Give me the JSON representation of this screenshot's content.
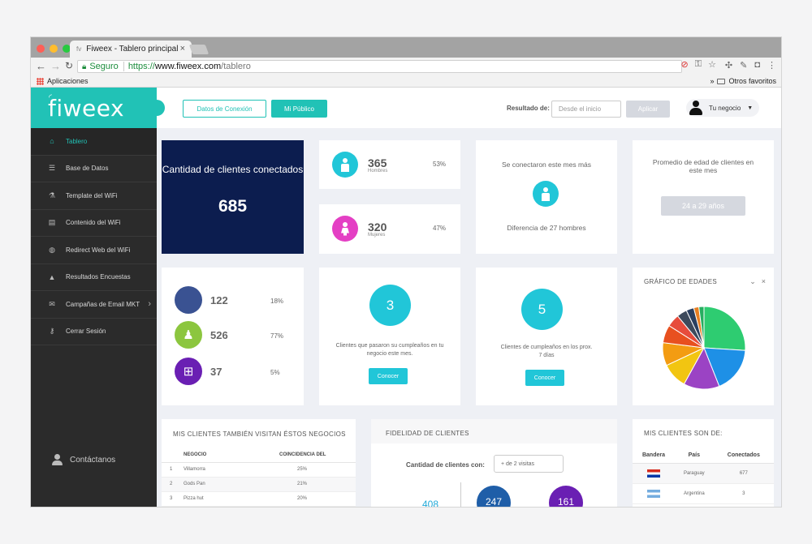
{
  "browser": {
    "tab_title": "Fiweex - Tablero principal",
    "tab_favicon": "fv",
    "secure_label": "Seguro",
    "url_scheme": "https://",
    "url_host": "www.fiweex.com",
    "url_path": "/tablero",
    "bookmarks_apps": "Aplicaciones",
    "bookmarks_other": "Otros favoritos",
    "bookmarks_more": "»"
  },
  "sidebar": {
    "logo": "fiweex",
    "items": [
      {
        "label": "Tablero",
        "icon": "dashboard-icon",
        "glyph": "⌂"
      },
      {
        "label": "Base de Datos",
        "icon": "users-icon",
        "glyph": "☰"
      },
      {
        "label": "Template del WiFi",
        "icon": "flask-icon",
        "glyph": "⚗"
      },
      {
        "label": "Contenido del WiFi",
        "icon": "archive-icon",
        "glyph": "▤"
      },
      {
        "label": "Redirect Web del WiFi",
        "icon": "globe-icon",
        "glyph": "◍"
      },
      {
        "label": "Resultados Encuestas",
        "icon": "area-chart-icon",
        "glyph": "▲"
      },
      {
        "label": "Campañas de Email MKT",
        "icon": "envelope-icon",
        "glyph": "✉"
      },
      {
        "label": "Cerrar Sesión",
        "icon": "key-icon",
        "glyph": "⚷"
      }
    ],
    "contact_label": "Contáctanos"
  },
  "topbar": {
    "btn_connection": "Datos de Conexión",
    "btn_audience": "Mi Público",
    "result_label": "Resultado de:",
    "date_placeholder": "Desde el inicio",
    "apply_label": "Aplicar",
    "user_label": "Tu negocio"
  },
  "connected": {
    "title": "Cantidad de clientes conectados",
    "value": "685"
  },
  "men": {
    "value": "365",
    "label": "Hombres",
    "pct": "53%"
  },
  "women": {
    "value": "320",
    "label": "Mujeres",
    "pct": "47%"
  },
  "more_this_month": {
    "title": "Se conectaron este mes más",
    "diff": "Diferencia de 27 hombres"
  },
  "age_avg": {
    "title": "Promedio de edad de clientes en este mes",
    "value": "24 a 29 años"
  },
  "os": [
    {
      "name": "apple-icon",
      "value": "122",
      "pct": "18%",
      "color": "#3a5292",
      "glyph": ""
    },
    {
      "name": "android-icon",
      "value": "526",
      "pct": "77%",
      "color": "#8cc63f",
      "glyph": "♟"
    },
    {
      "name": "windows-icon",
      "value": "37",
      "pct": "5%",
      "color": "#6a1fb3",
      "glyph": "⊞"
    }
  ],
  "birthday_past": {
    "value": "3",
    "text": "Clientes que pasaron su cumpleaños en tu negocio este mes.",
    "button": "Conocer"
  },
  "birthday_next": {
    "value": "5",
    "text": "Clientes de cumpleaños en los prox. 7 días",
    "button": "Conocer"
  },
  "age_chart": {
    "title": "GRÁFICO DE EDADES"
  },
  "chart_data": {
    "type": "pie",
    "title": "GRÁFICO DE EDADES",
    "values": [
      26,
      18,
      14,
      10,
      9,
      7,
      5,
      4,
      3,
      2,
      2
    ],
    "colors": [
      "#2ecc71",
      "#1e90e6",
      "#9b43c4",
      "#f2c511",
      "#f39c12",
      "#e8501f",
      "#e74c3c",
      "#3d4a5c",
      "#2a3f5f",
      "#e67e22",
      "#27ae60"
    ]
  },
  "also_visit": {
    "title": "MIS CLIENTES TAMBIÉN VISITAN ÉSTOS NEGOCIOS",
    "col_business": "NEGOCIO",
    "col_match": "COINCIDENCIA DEL",
    "rows": [
      {
        "rank": "1",
        "name": "Villamorra",
        "pct": "25%"
      },
      {
        "rank": "2",
        "name": "Gods Pan",
        "pct": "21%"
      },
      {
        "rank": "3",
        "name": "Pizza hut",
        "pct": "20%"
      }
    ]
  },
  "loyalty": {
    "title": "FIDELIDAD DE CLIENTES",
    "label": "Cantidad de clientes con:",
    "select_value": "+ de 2 visitas",
    "values": [
      "408",
      "247",
      "161"
    ],
    "colors": [
      "#21a9d8",
      "#1f5ea8",
      "#6a1fb3"
    ]
  },
  "countries": {
    "title": "MIS CLIENTES SON DE:",
    "col_flag": "Bandera",
    "col_country": "País",
    "col_connected": "Conectados",
    "rows": [
      {
        "country": "Paraguay",
        "connected": "677"
      },
      {
        "country": "Argentina",
        "connected": "3"
      }
    ]
  }
}
